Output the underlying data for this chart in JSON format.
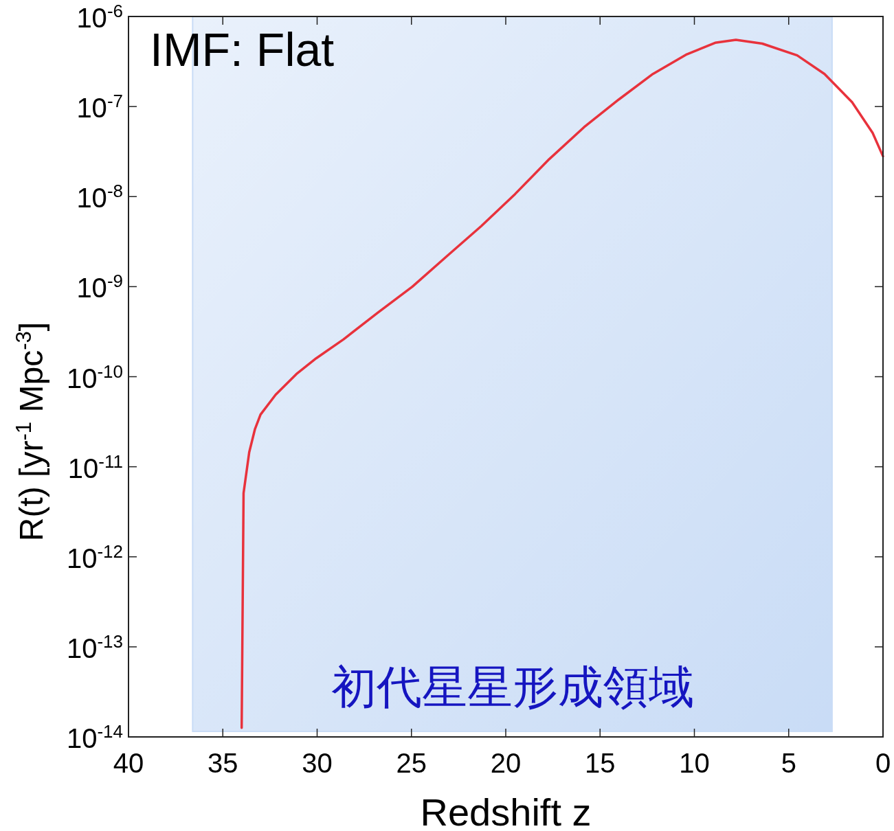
{
  "chart_data": {
    "type": "line",
    "title": "IMF: Flat",
    "xlabel": "Redshift z",
    "ylabel": "R(t) [yr$^{-1}$ Mpc$^{-3}$]",
    "log": "y",
    "grid": false,
    "marker": "none",
    "line_style": "solid",
    "xlim": [
      40,
      0
    ],
    "xticks": [
      40,
      35,
      30,
      25,
      20,
      15,
      10,
      5,
      0
    ],
    "ylim": [
      1e-14,
      1e-06
    ],
    "yticks": [
      {
        "value": 1e-14,
        "label": "10$^{-14}$"
      },
      {
        "value": 1e-13,
        "label": "10$^{-13}$"
      },
      {
        "value": 1e-12,
        "label": "10$^{-12}$"
      },
      {
        "value": 1e-11,
        "label": "10$^{-11}$"
      },
      {
        "value": 1e-10,
        "label": "10$^{-10}$"
      },
      {
        "value": 1e-09,
        "label": "10$^{-9}$"
      },
      {
        "value": 1e-08,
        "label": "10$^{-8}$"
      },
      {
        "value": 1e-07,
        "label": "10$^{-7}$"
      },
      {
        "value": 1e-06,
        "label": "10$^{-6}$"
      }
    ],
    "bands": [
      {
        "axis": "x",
        "from": 36.6,
        "to": 2.7,
        "label": "初代星星形成領域",
        "color": "#c9dcf6"
      }
    ],
    "series": [
      {
        "color": "#e8323c",
        "x": [
          34.0,
          33.9,
          33.6,
          33.3,
          33.0,
          32.2,
          31.1,
          30.05,
          28.6,
          26.8,
          24.95,
          23.1,
          21.3,
          19.5,
          17.7,
          15.85,
          14.0,
          12.2,
          10.4,
          8.9,
          7.8,
          6.4,
          4.55,
          3.1,
          1.64,
          0.55,
          0
        ],
        "values": [
          1.26e-14,
          5.1e-12,
          1.45e-11,
          2.6e-11,
          3.8e-11,
          6.3e-11,
          1.07e-10,
          1.6e-10,
          2.6e-10,
          5.1e-10,
          1e-09,
          2.2e-09,
          4.7e-09,
          1.07e-08,
          2.6e-08,
          5.9e-08,
          1.2e-07,
          2.3e-07,
          3.8e-07,
          5.1e-07,
          5.5e-07,
          5e-07,
          3.7e-07,
          2.3e-07,
          1.12e-07,
          5.1e-08,
          2.8e-08
        ]
      }
    ]
  }
}
